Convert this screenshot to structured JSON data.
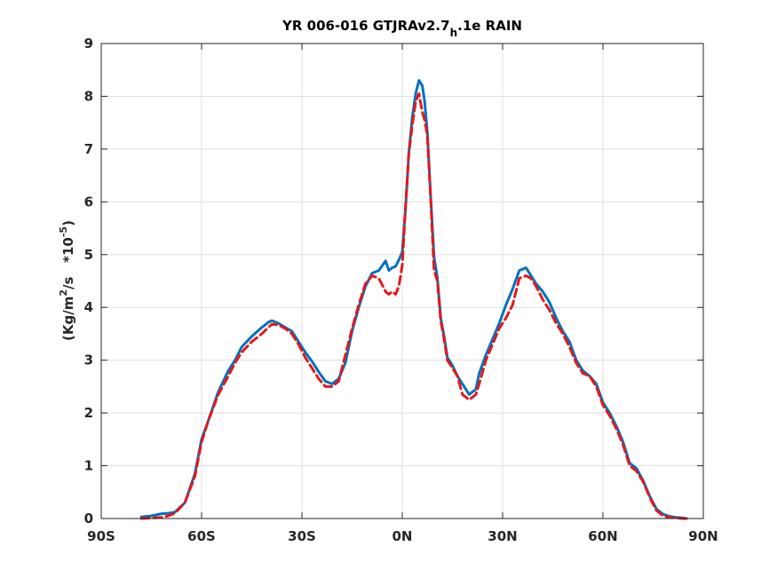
{
  "chart_data": {
    "type": "line",
    "title": "YR 006-016 GTJRAv2.7",
    "title_sub": "h",
    "title_suffix": ".1e RAIN",
    "xlabel": "",
    "ylabel_prefix": "(Kg/m",
    "ylabel_sup1": "2",
    "ylabel_mid": "/s   *10",
    "ylabel_sup2": "-5",
    "ylabel_suffix": ")",
    "xlim": [
      -90,
      90
    ],
    "ylim": [
      0,
      9
    ],
    "xticks": [
      -90,
      -60,
      -30,
      0,
      30,
      60,
      90
    ],
    "xtick_labels": [
      "90S",
      "60S",
      "30S",
      "0N",
      "30N",
      "60N",
      "90N"
    ],
    "yticks": [
      0,
      1,
      2,
      3,
      4,
      5,
      6,
      7,
      8,
      9
    ],
    "ytick_labels": [
      "0",
      "1",
      "2",
      "3",
      "4",
      "5",
      "6",
      "7",
      "8",
      "9"
    ],
    "grid": true,
    "series": [
      {
        "color": "#0072bd",
        "style": "solid",
        "x": [
          -78,
          -75,
          -72,
          -70,
          -68,
          -65,
          -62,
          -60,
          -58,
          -55,
          -52,
          -50,
          -48,
          -45,
          -42,
          -40,
          -39,
          -37,
          -35,
          -33,
          -31,
          -29,
          -27,
          -25,
          -23,
          -21,
          -19,
          -17,
          -15,
          -13,
          -11,
          -9,
          -7,
          -5,
          -4,
          -3,
          -2,
          -1,
          0,
          1,
          2,
          3,
          4,
          5,
          6,
          6.7,
          7.5,
          8.5,
          9.5,
          10.5,
          11.5,
          12.5,
          13.5,
          15,
          16.5,
          18,
          20,
          22,
          23,
          25,
          27,
          29,
          31,
          33,
          35,
          37,
          38.5,
          40,
          42,
          44,
          46,
          48,
          50,
          52,
          54,
          56,
          58,
          60,
          62,
          64,
          66,
          68,
          70,
          72,
          74,
          76,
          78,
          80,
          82,
          84,
          85
        ],
        "y": [
          0.03,
          0.05,
          0.09,
          0.1,
          0.12,
          0.3,
          0.85,
          1.5,
          1.85,
          2.4,
          2.8,
          3.0,
          3.25,
          3.45,
          3.62,
          3.72,
          3.75,
          3.7,
          3.62,
          3.55,
          3.35,
          3.15,
          2.98,
          2.78,
          2.6,
          2.55,
          2.65,
          2.95,
          3.55,
          4.0,
          4.4,
          4.65,
          4.7,
          4.88,
          4.7,
          4.75,
          4.78,
          4.9,
          5.05,
          5.9,
          6.95,
          7.6,
          8.05,
          8.3,
          8.2,
          7.9,
          7.3,
          6.1,
          4.95,
          4.55,
          3.8,
          3.45,
          3.05,
          2.9,
          2.7,
          2.55,
          2.35,
          2.45,
          2.75,
          3.1,
          3.4,
          3.7,
          4.05,
          4.35,
          4.7,
          4.75,
          4.6,
          4.45,
          4.3,
          4.1,
          3.8,
          3.55,
          3.35,
          3.0,
          2.8,
          2.7,
          2.55,
          2.2,
          2.0,
          1.75,
          1.45,
          1.05,
          0.95,
          0.72,
          0.42,
          0.18,
          0.08,
          0.04,
          0.02,
          0.01,
          0.0
        ]
      },
      {
        "color": "#e2191c",
        "style": "dashed",
        "x": [
          -78,
          -75,
          -72,
          -70,
          -68,
          -65,
          -62,
          -60,
          -58,
          -55,
          -52,
          -50,
          -48,
          -45,
          -42,
          -40,
          -39,
          -37,
          -35,
          -33,
          -31,
          -29,
          -27,
          -25,
          -23,
          -21,
          -19,
          -17,
          -15,
          -13,
          -11,
          -9,
          -7,
          -5,
          -4,
          -3,
          -2,
          -1,
          0,
          1,
          2,
          3,
          4,
          5,
          6,
          6.7,
          7.5,
          8.5,
          9.5,
          10.5,
          11.5,
          12.5,
          13.5,
          15,
          16.5,
          18,
          20,
          22,
          23,
          25,
          27,
          29,
          31,
          33,
          35,
          37,
          38.5,
          40,
          42,
          44,
          46,
          48,
          50,
          52,
          54,
          56,
          58,
          60,
          62,
          64,
          66,
          68,
          70,
          72,
          74,
          76,
          78,
          80,
          82,
          84,
          85
        ],
        "y": [
          0.0,
          0.01,
          0.02,
          0.05,
          0.1,
          0.3,
          0.8,
          1.45,
          1.85,
          2.35,
          2.7,
          2.95,
          3.15,
          3.35,
          3.5,
          3.62,
          3.68,
          3.67,
          3.6,
          3.5,
          3.3,
          3.05,
          2.85,
          2.65,
          2.5,
          2.5,
          2.6,
          3.1,
          3.6,
          4.05,
          4.45,
          4.6,
          4.55,
          4.3,
          4.25,
          4.3,
          4.25,
          4.4,
          4.8,
          5.95,
          6.95,
          7.45,
          7.9,
          8.05,
          7.7,
          7.55,
          7.25,
          6.05,
          4.7,
          4.5,
          3.75,
          3.4,
          3.0,
          2.85,
          2.7,
          2.35,
          2.25,
          2.35,
          2.55,
          3.0,
          3.3,
          3.6,
          3.8,
          4.05,
          4.55,
          4.6,
          4.55,
          4.4,
          4.15,
          3.95,
          3.7,
          3.5,
          3.25,
          2.95,
          2.75,
          2.7,
          2.5,
          2.15,
          1.95,
          1.7,
          1.4,
          1.0,
          0.9,
          0.7,
          0.4,
          0.15,
          0.05,
          0.02,
          0.01,
          0.0,
          0.0
        ]
      }
    ]
  }
}
